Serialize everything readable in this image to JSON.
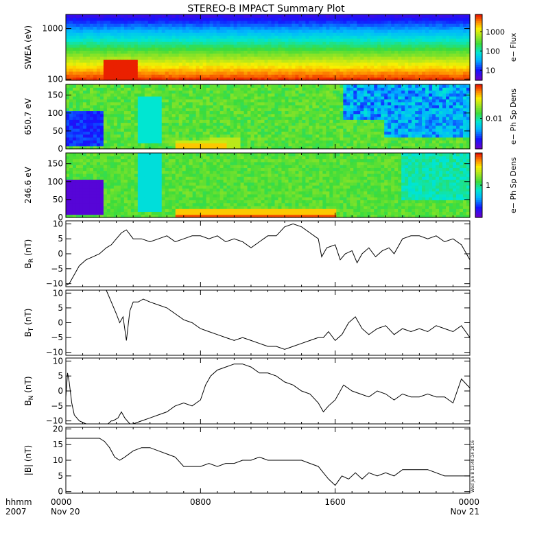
{
  "title": "STEREO-B IMPACT Summary Plot",
  "stamp": "Wed Jun 8 13:40:14 2016",
  "time_axis": {
    "corner_labels": [
      "hhmm",
      "2007"
    ],
    "ticks": [
      {
        "hour": 0,
        "label": "0000",
        "sub": "Nov 20"
      },
      {
        "hour": 8,
        "label": "0800",
        "sub": ""
      },
      {
        "hour": 16,
        "label": "1600",
        "sub": ""
      },
      {
        "hour": 24,
        "label": "0000",
        "sub": "Nov 21"
      }
    ],
    "range_hours": [
      0,
      24
    ]
  },
  "chart_data": [
    {
      "type": "heatmap",
      "ylabel": "SWEA (eV)",
      "ylog": true,
      "ylim": [
        95,
        1900
      ],
      "yticks": [
        100,
        1000
      ],
      "ytick_labels": [
        "100",
        "1000"
      ],
      "colorbar": {
        "label": "e− Flux",
        "log": true,
        "range": [
          3,
          8000
        ],
        "ticks": [
          10,
          100,
          1000
        ],
        "tick_labels": [
          "10",
          "100",
          "1000"
        ]
      },
      "description_bands": [
        {
          "t_start": 2.3,
          "t_end": 4.2,
          "note": "enhanced low-energy flux"
        }
      ]
    },
    {
      "type": "heatmap",
      "ylabel": "650.7 eV",
      "ylim": [
        0,
        180
      ],
      "yticks": [
        0,
        50,
        100,
        150
      ],
      "ytick_labels": [
        "0",
        "50",
        "100",
        "150"
      ],
      "colorbar": {
        "label": "e− Ph Sp Dens",
        "log": true,
        "range": [
          0.002,
          0.06
        ],
        "ticks": [
          0.01
        ],
        "tick_labels": [
          "0.01"
        ]
      }
    },
    {
      "type": "heatmap",
      "ylabel": "246.6 eV",
      "ylim": [
        0,
        180
      ],
      "yticks": [
        0,
        50,
        100,
        150
      ],
      "ytick_labels": [
        "0",
        "50",
        "100",
        "150"
      ],
      "colorbar": {
        "label": "e− Ph Sp Dens",
        "log": true,
        "range": [
          0.2,
          5
        ],
        "ticks": [
          1
        ],
        "tick_labels": [
          "1"
        ]
      }
    },
    {
      "type": "line",
      "ylabel": "B",
      "ylabel_sub": "R",
      "ylabel_unit": "(nT)",
      "ylim": [
        -11,
        11
      ],
      "yticks": [
        -10,
        -5,
        0,
        5,
        10
      ],
      "ytick_labels": [
        "−10",
        "−5",
        "0",
        "5",
        "10"
      ],
      "x": [
        0,
        0.2,
        0.5,
        0.8,
        1.2,
        1.6,
        2.0,
        2.4,
        2.7,
        3.0,
        3.3,
        3.6,
        4.0,
        4.5,
        5.0,
        5.5,
        6.0,
        6.5,
        7.0,
        7.5,
        8.0,
        8.5,
        9.0,
        9.5,
        10.0,
        10.5,
        11.0,
        11.5,
        12.0,
        12.5,
        13.0,
        13.5,
        14.0,
        14.5,
        15.0,
        15.2,
        15.5,
        16.0,
        16.3,
        16.6,
        17.0,
        17.3,
        17.6,
        18.0,
        18.4,
        18.8,
        19.2,
        19.5,
        20.0,
        20.5,
        21.0,
        21.5,
        22.0,
        22.5,
        23.0,
        23.5,
        24.0
      ],
      "y": [
        -10.5,
        -10,
        -7,
        -4,
        -2,
        -1,
        0,
        2,
        3,
        5,
        7,
        8,
        5,
        5,
        4,
        5,
        6,
        4,
        5,
        6,
        6,
        5,
        6,
        4,
        5,
        4,
        2,
        4,
        6,
        6,
        9,
        10,
        9,
        7,
        5,
        -1,
        2,
        3,
        -2,
        0,
        1,
        -3,
        0,
        2,
        -1,
        1,
        2,
        0,
        5,
        6,
        6,
        5,
        6,
        4,
        5,
        3,
        -2
      ]
    },
    {
      "type": "line",
      "ylabel": "B",
      "ylabel_sub": "T",
      "ylabel_unit": "(nT)",
      "ylim": [
        -11,
        11
      ],
      "yticks": [
        -10,
        -5,
        0,
        5,
        10
      ],
      "ytick_labels": [
        "−10",
        "−5",
        "0",
        "5",
        "10"
      ],
      "x": [
        2.4,
        2.7,
        3.0,
        3.2,
        3.4,
        3.6,
        3.8,
        4.0,
        4.3,
        4.6,
        5.0,
        5.5,
        6.0,
        6.5,
        7.0,
        7.5,
        8.0,
        8.5,
        9.0,
        9.5,
        10.0,
        10.5,
        11.0,
        11.5,
        12.0,
        12.5,
        13.0,
        13.5,
        14.0,
        14.5,
        15.0,
        15.3,
        15.6,
        16.0,
        16.4,
        16.8,
        17.2,
        17.6,
        18.0,
        18.5,
        19.0,
        19.5,
        20.0,
        20.5,
        21.0,
        21.5,
        22.0,
        22.5,
        23.0,
        23.5,
        24.0
      ],
      "y": [
        11,
        7,
        3,
        0,
        2,
        -6,
        4,
        7,
        7,
        8,
        7,
        6,
        5,
        3,
        1,
        0,
        -2,
        -3,
        -4,
        -5,
        -6,
        -5,
        -6,
        -7,
        -8,
        -8,
        -9,
        -8,
        -7,
        -6,
        -5,
        -5,
        -3,
        -6,
        -4,
        0,
        2,
        -2,
        -4,
        -2,
        -1,
        -4,
        -2,
        -3,
        -2,
        -3,
        -1,
        -2,
        -3,
        -1,
        -5
      ]
    },
    {
      "type": "line",
      "ylabel": "B",
      "ylabel_sub": "N",
      "ylabel_unit": "(nT)",
      "ylim": [
        -11,
        11
      ],
      "yticks": [
        -10,
        -5,
        0,
        5,
        10
      ],
      "ytick_labels": [
        "−10",
        "−5",
        "0",
        "5",
        "10"
      ],
      "x": [
        0,
        0.1,
        0.2,
        0.35,
        0.5,
        0.8,
        1.2,
        1.6,
        2.0,
        2.5,
        2.7,
        2.8,
        3.1,
        3.3,
        3.5,
        3.8,
        4.0,
        4.5,
        5.0,
        5.5,
        6.0,
        6.5,
        7.0,
        7.5,
        8.0,
        8.3,
        8.6,
        9.0,
        9.5,
        10.0,
        10.5,
        11.0,
        11.5,
        12.0,
        12.5,
        13.0,
        13.5,
        14.0,
        14.5,
        15.0,
        15.3,
        15.6,
        16.0,
        16.5,
        17.0,
        17.5,
        18.0,
        18.5,
        19.0,
        19.5,
        20.0,
        20.5,
        21.0,
        21.5,
        22.0,
        22.5,
        23.0,
        23.5,
        24.0
      ],
      "y": [
        -2,
        6,
        3,
        -4,
        -8,
        -10,
        -11,
        -11,
        -11,
        -11,
        -10,
        -10,
        -9,
        -7,
        -9,
        -11,
        -11,
        -10,
        -9,
        -8,
        -7,
        -5,
        -4,
        -5,
        -3,
        2,
        5,
        7,
        8,
        9,
        9,
        8,
        6,
        6,
        5,
        3,
        2,
        0,
        -1,
        -4,
        -7,
        -5,
        -3,
        2,
        0,
        -1,
        -2,
        0,
        -1,
        -3,
        -1,
        -2,
        -2,
        -1,
        -2,
        -2,
        -4,
        4,
        1
      ]
    },
    {
      "type": "line",
      "ylabel": "|B| (nT)",
      "ylim": [
        -0.5,
        20.5
      ],
      "yticks": [
        0,
        5,
        10,
        15,
        20
      ],
      "ytick_labels": [
        "0",
        "5",
        "10",
        "15",
        "20"
      ],
      "x": [
        0,
        0.5,
        1.0,
        1.5,
        2.0,
        2.3,
        2.6,
        2.9,
        3.2,
        3.5,
        4.0,
        4.5,
        5.0,
        5.5,
        6.0,
        6.5,
        7.0,
        7.5,
        8.0,
        8.5,
        9.0,
        9.5,
        10.0,
        10.5,
        11.0,
        11.5,
        12.0,
        12.5,
        13.0,
        13.5,
        14.0,
        14.5,
        15.0,
        15.3,
        15.6,
        16.0,
        16.4,
        16.8,
        17.2,
        17.6,
        18.0,
        18.5,
        19.0,
        19.5,
        20.0,
        20.5,
        21.0,
        21.5,
        22.0,
        22.5,
        23.0,
        23.5,
        24.0
      ],
      "y": [
        17,
        17,
        17,
        17,
        17,
        16,
        14,
        11,
        10,
        11,
        13,
        14,
        14,
        13,
        12,
        11,
        8,
        8,
        8,
        9,
        8,
        9,
        9,
        10,
        10,
        11,
        10,
        10,
        10,
        10,
        10,
        9,
        8,
        6,
        4,
        2,
        5,
        4,
        6,
        4,
        6,
        5,
        6,
        5,
        7,
        7,
        7,
        7,
        6,
        5,
        5,
        5,
        5
      ]
    }
  ]
}
